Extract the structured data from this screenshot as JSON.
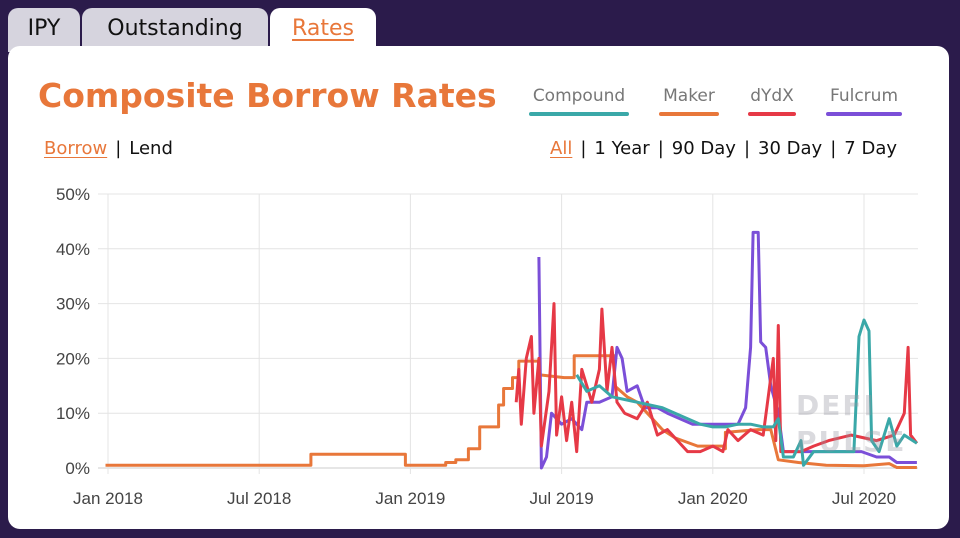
{
  "tabs": [
    {
      "label": "IPY"
    },
    {
      "label": "Outstanding"
    },
    {
      "label": "Rates"
    }
  ],
  "title": "Composite Borrow Rates",
  "mode": {
    "options": [
      "Borrow",
      "Lend"
    ],
    "selected": "Borrow"
  },
  "ranges": {
    "options": [
      "All",
      "1 Year",
      "90 Day",
      "30 Day",
      "7 Day"
    ],
    "selected": "All"
  },
  "watermark": "DEFI PULSE",
  "chart_data": {
    "type": "line",
    "title": "Composite Borrow Rates",
    "x_unit": "months since Jan 2018",
    "xlim": [
      -0.1,
      32.1
    ],
    "ylim": [
      0,
      50
    ],
    "grid": true,
    "legend": "top-right",
    "y_ticks": [
      {
        "v": 0,
        "label": "0%"
      },
      {
        "v": 10,
        "label": "10%"
      },
      {
        "v": 20,
        "label": "20%"
      },
      {
        "v": 30,
        "label": "30%"
      },
      {
        "v": 40,
        "label": "40%"
      },
      {
        "v": 50,
        "label": "50%"
      }
    ],
    "x_ticks": [
      {
        "v": 0,
        "label": "Jan 2018"
      },
      {
        "v": 6,
        "label": "Jul 2018"
      },
      {
        "v": 12,
        "label": "Jan 2019"
      },
      {
        "v": 18,
        "label": "Jul 2019"
      },
      {
        "v": 24,
        "label": "Jan 2020"
      },
      {
        "v": 30,
        "label": "Jul 2020"
      }
    ],
    "series": [
      {
        "name": "Maker",
        "color": "#e8773a",
        "points": [
          [
            -0.1,
            0.5
          ],
          [
            8.05,
            0.5
          ],
          [
            8.05,
            2.5
          ],
          [
            11.8,
            2.5
          ],
          [
            11.8,
            0.5
          ],
          [
            13.4,
            0.5
          ],
          [
            13.4,
            1
          ],
          [
            13.8,
            1
          ],
          [
            13.8,
            1.5
          ],
          [
            14.3,
            1.5
          ],
          [
            14.3,
            3.5
          ],
          [
            14.75,
            3.5
          ],
          [
            14.75,
            7.5
          ],
          [
            15.5,
            7.5
          ],
          [
            15.5,
            11.5
          ],
          [
            15.7,
            11.5
          ],
          [
            15.7,
            14.5
          ],
          [
            16.05,
            14.5
          ],
          [
            16.05,
            16.5
          ],
          [
            16.3,
            16.5
          ],
          [
            16.3,
            19.5
          ],
          [
            17.1,
            19.5
          ],
          [
            17.1,
            17
          ],
          [
            18.1,
            16.5
          ],
          [
            18.5,
            16.5
          ],
          [
            18.5,
            20.5
          ],
          [
            20.1,
            20.5
          ],
          [
            20.1,
            15
          ],
          [
            20.6,
            13
          ],
          [
            21.0,
            12
          ],
          [
            21.4,
            10
          ],
          [
            22,
            7
          ],
          [
            22.5,
            5.5
          ],
          [
            23.4,
            4
          ],
          [
            24.4,
            4
          ],
          [
            24.5,
            3.5
          ],
          [
            24.5,
            6.5
          ],
          [
            25.8,
            7
          ],
          [
            26.3,
            7
          ],
          [
            26.6,
            1.5
          ],
          [
            27.4,
            1
          ],
          [
            28.5,
            0.5
          ],
          [
            30,
            0.4
          ],
          [
            31,
            0.8
          ],
          [
            31.3,
            0.1
          ],
          [
            32.1,
            0.1
          ]
        ]
      },
      {
        "name": "Fulcrum",
        "color": "#7b4fd8",
        "points": [
          [
            17.1,
            38.5
          ],
          [
            17.2,
            0
          ],
          [
            17.4,
            2
          ],
          [
            17.6,
            10
          ],
          [
            18,
            8
          ],
          [
            18.4,
            9
          ],
          [
            18.8,
            7
          ],
          [
            19,
            12
          ],
          [
            19.5,
            12
          ],
          [
            20,
            13
          ],
          [
            20.2,
            22
          ],
          [
            20.4,
            20
          ],
          [
            20.6,
            14
          ],
          [
            21,
            15
          ],
          [
            21.3,
            11
          ],
          [
            21.8,
            11
          ],
          [
            22.2,
            10
          ],
          [
            22.7,
            9
          ],
          [
            23.2,
            8
          ],
          [
            24,
            8
          ],
          [
            24.5,
            8
          ],
          [
            25,
            8
          ],
          [
            25.3,
            11
          ],
          [
            25.5,
            22
          ],
          [
            25.6,
            43
          ],
          [
            25.8,
            43
          ],
          [
            25.9,
            23
          ],
          [
            26.1,
            22
          ],
          [
            26.3,
            15
          ],
          [
            26.6,
            10
          ],
          [
            26.8,
            3
          ],
          [
            27.5,
            3
          ],
          [
            28.5,
            3
          ],
          [
            29.5,
            3
          ],
          [
            29.9,
            3
          ],
          [
            30.5,
            2
          ],
          [
            31.0,
            2
          ],
          [
            31.3,
            1
          ],
          [
            32.1,
            1
          ]
        ]
      },
      {
        "name": "dYdX",
        "color": "#e63946",
        "points": [
          [
            16.2,
            12
          ],
          [
            16.3,
            18
          ],
          [
            16.4,
            8
          ],
          [
            16.6,
            20
          ],
          [
            16.8,
            24
          ],
          [
            16.9,
            10
          ],
          [
            17.1,
            20
          ],
          [
            17.2,
            4
          ],
          [
            17.5,
            14
          ],
          [
            17.7,
            30
          ],
          [
            17.8,
            6
          ],
          [
            18,
            13
          ],
          [
            18.2,
            5
          ],
          [
            18.4,
            12
          ],
          [
            18.6,
            3
          ],
          [
            18.8,
            18
          ],
          [
            19.2,
            12
          ],
          [
            19.5,
            18
          ],
          [
            19.6,
            29
          ],
          [
            19.8,
            14
          ],
          [
            20,
            22
          ],
          [
            20.2,
            12
          ],
          [
            20.5,
            10
          ],
          [
            21,
            9
          ],
          [
            21.4,
            12
          ],
          [
            21.8,
            6
          ],
          [
            22.2,
            7
          ],
          [
            22.6,
            5
          ],
          [
            23,
            3
          ],
          [
            23.5,
            3
          ],
          [
            24,
            4
          ],
          [
            24.4,
            3
          ],
          [
            24.6,
            7
          ],
          [
            25,
            5
          ],
          [
            25.5,
            7
          ],
          [
            26,
            6
          ],
          [
            26.4,
            20
          ],
          [
            26.5,
            5
          ],
          [
            26.6,
            26
          ],
          [
            26.7,
            3
          ],
          [
            27.5,
            3
          ],
          [
            28,
            4
          ],
          [
            28.6,
            5
          ],
          [
            29.5,
            6
          ],
          [
            30.5,
            5
          ],
          [
            31.2,
            6
          ],
          [
            31.6,
            10
          ],
          [
            31.75,
            22
          ],
          [
            31.85,
            6
          ],
          [
            32.1,
            4.5
          ]
        ]
      },
      {
        "name": "Compound",
        "color": "#3aa8a8",
        "points": [
          [
            18.6,
            17
          ],
          [
            19,
            14
          ],
          [
            19.5,
            15
          ],
          [
            20,
            13
          ],
          [
            20.5,
            12.5
          ],
          [
            21,
            12
          ],
          [
            21.5,
            11.5
          ],
          [
            22,
            11
          ],
          [
            22.5,
            10
          ],
          [
            23,
            9
          ],
          [
            23.5,
            8
          ],
          [
            24,
            7.5
          ],
          [
            24.5,
            7.5
          ],
          [
            25,
            8
          ],
          [
            25.5,
            8
          ],
          [
            26,
            7.5
          ],
          [
            26.4,
            7.5
          ],
          [
            26.6,
            9
          ],
          [
            26.8,
            2
          ],
          [
            27.2,
            2
          ],
          [
            27.5,
            5
          ],
          [
            27.6,
            0.5
          ],
          [
            28,
            3
          ],
          [
            28.6,
            3
          ],
          [
            29.2,
            3
          ],
          [
            29.6,
            3
          ],
          [
            29.8,
            24
          ],
          [
            30,
            27
          ],
          [
            30.2,
            25
          ],
          [
            30.3,
            5
          ],
          [
            30.6,
            3
          ],
          [
            31,
            9
          ],
          [
            31.3,
            4
          ],
          [
            31.6,
            6
          ],
          [
            32.1,
            4.5
          ]
        ]
      }
    ],
    "legend_order": [
      "Compound",
      "Maker",
      "dYdX",
      "Fulcrum"
    ]
  }
}
